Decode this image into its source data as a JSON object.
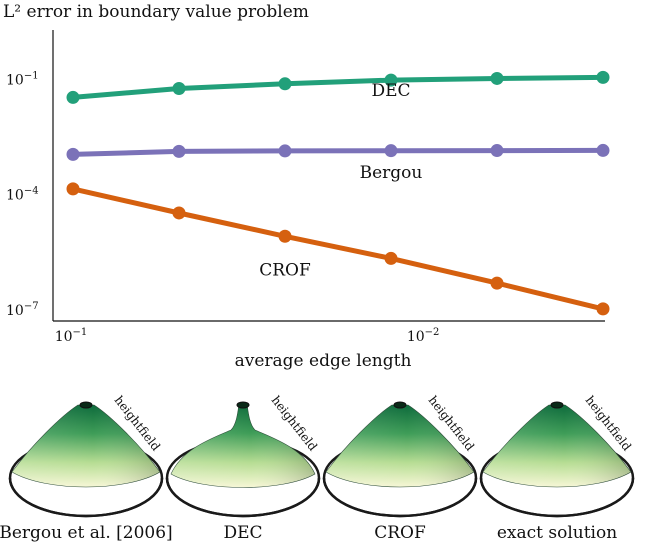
{
  "chart_data": {
    "type": "line",
    "title": "L² error in boundary value problem",
    "xlabel": "average edge length",
    "ylabel": "",
    "x_scale": "log",
    "y_scale": "log",
    "x": [
      0.1,
      0.05,
      0.025,
      0.0125,
      0.00625,
      0.003125
    ],
    "xlim": [
      0.1,
      0.003125
    ],
    "ylim": [
      1e-07,
      1
    ],
    "x_ticks": [
      {
        "value": 0.1,
        "label": "10",
        "exp": "−1"
      },
      {
        "value": 0.01,
        "label": "10",
        "exp": "−2"
      }
    ],
    "y_ticks": [
      {
        "value": 0.1,
        "label": "10",
        "exp": "−1"
      },
      {
        "value": 0.0001,
        "label": "10",
        "exp": "−4"
      },
      {
        "value": 1e-07,
        "label": "10",
        "exp": "−7"
      }
    ],
    "grid": false,
    "series": [
      {
        "name": "DEC",
        "color": "#22a07a",
        "values": [
          0.034,
          0.058,
          0.077,
          0.096,
          0.106,
          0.113
        ],
        "label_at": {
          "x": 0.0125,
          "y": 0.037
        }
      },
      {
        "name": "Bergou",
        "color": "#7b72b8",
        "values": [
          0.00112,
          0.00134,
          0.00138,
          0.0014,
          0.00141,
          0.00142
        ],
        "label_at": {
          "x": 0.0125,
          "y": 0.00027
        }
      },
      {
        "name": "CROF",
        "color": "#d5600f",
        "values": [
          0.000142,
          3.35e-05,
          8.3e-06,
          2.2e-06,
          5e-07,
          1.07e-07
        ],
        "label_at": {
          "x": 0.025,
          "y": 7.8e-07
        }
      }
    ]
  },
  "renders": {
    "side_label": "heightfield",
    "captions": [
      "Bergou et al. [2006]",
      "DEC",
      "CROF",
      "exact solution"
    ]
  }
}
